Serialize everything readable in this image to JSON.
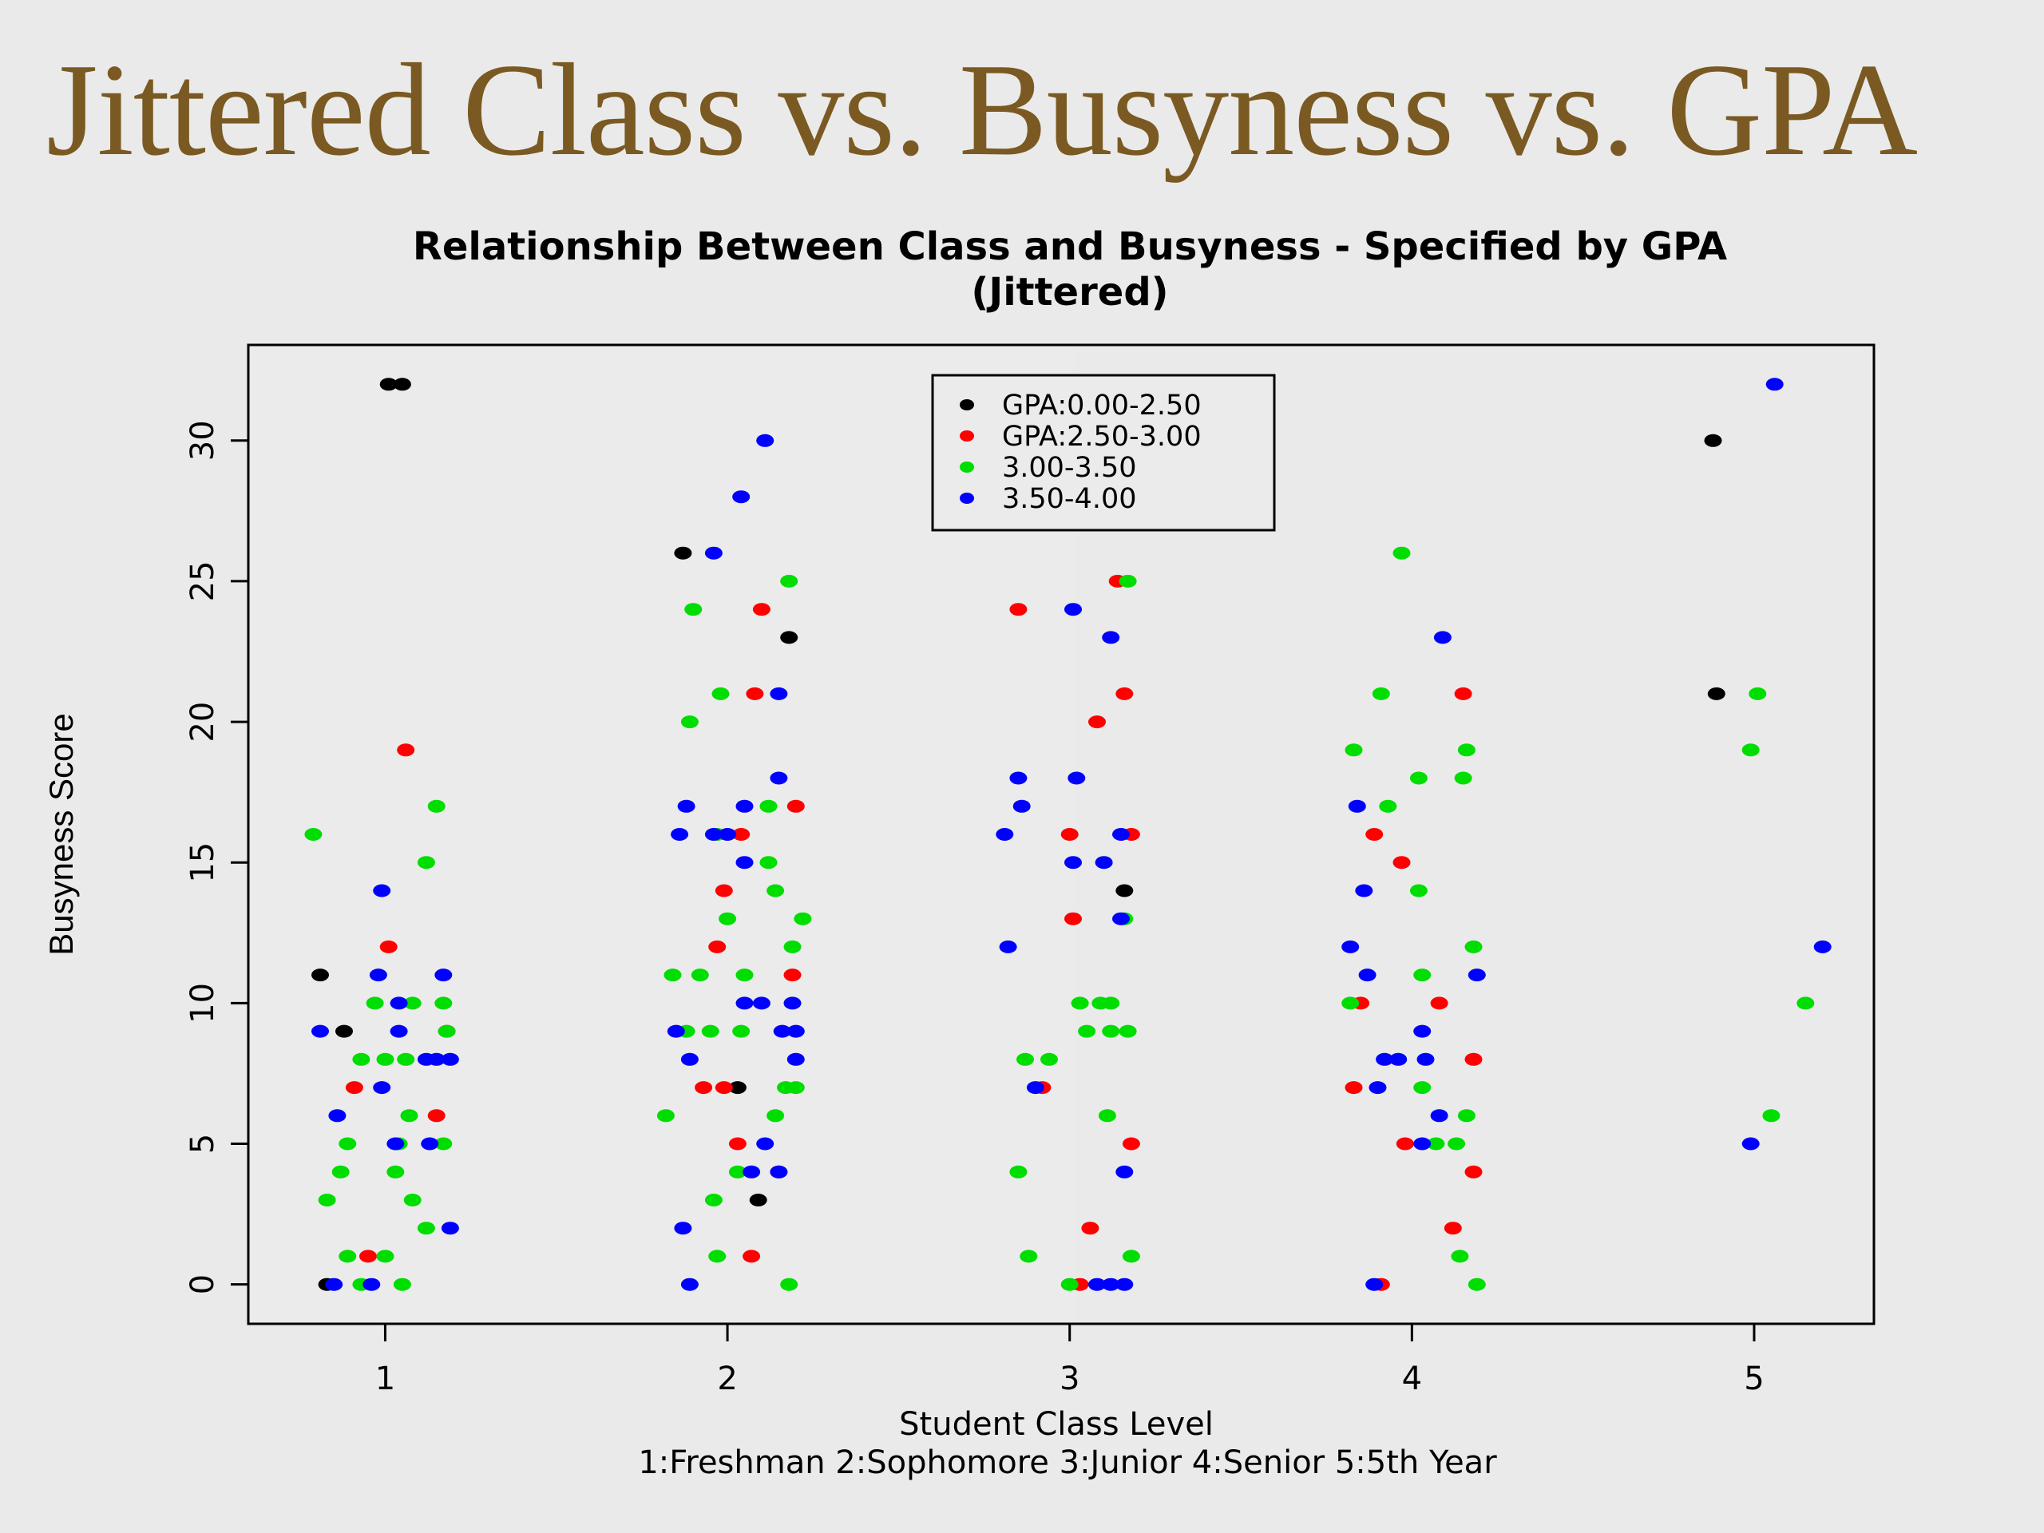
{
  "slide": {
    "title": "Jittered Class vs. Busyness vs. GPA",
    "title_color": "#7a5a22"
  },
  "chart_data": {
    "type": "scatter",
    "title": [
      "Relationship Between Class and Busyness - Specified by GPA",
      "(Jittered)"
    ],
    "xlabel": [
      "Student Class Level",
      "1:Freshman 2:Sophomore 3:Junior 4:Senior 5:5th Year"
    ],
    "ylabel": "Busyness Score",
    "xlim": [
      0.6,
      5.35
    ],
    "ylim": [
      -1.4,
      33.4
    ],
    "x_ticks": [
      1,
      2,
      3,
      4,
      5
    ],
    "y_ticks": [
      0,
      5,
      10,
      15,
      20,
      25,
      30
    ],
    "grid": false,
    "legend_position": "top-center",
    "series": [
      {
        "name": "GPA:0.00-2.50",
        "color": "#000000",
        "points": [
          [
            1.01,
            32
          ],
          [
            1.05,
            32
          ],
          [
            0.81,
            11
          ],
          [
            0.88,
            9
          ],
          [
            0.83,
            0
          ],
          [
            1.87,
            26
          ],
          [
            2.18,
            23
          ],
          [
            2.03,
            7
          ],
          [
            2.09,
            3
          ],
          [
            3.16,
            14
          ],
          [
            4.88,
            30
          ],
          [
            4.89,
            21
          ]
        ]
      },
      {
        "name": "GPA:2.50-3.00",
        "color": "#ff0000",
        "points": [
          [
            1.06,
            19
          ],
          [
            1.01,
            12
          ],
          [
            0.91,
            7
          ],
          [
            0.95,
            1
          ],
          [
            1.15,
            6
          ],
          [
            1.18,
            9
          ],
          [
            2.1,
            24
          ],
          [
            2.08,
            21
          ],
          [
            2.2,
            17
          ],
          [
            2.04,
            16
          ],
          [
            1.99,
            14
          ],
          [
            1.97,
            12
          ],
          [
            2.19,
            11
          ],
          [
            1.93,
            7
          ],
          [
            1.99,
            7
          ],
          [
            2.03,
            5
          ],
          [
            2.15,
            4
          ],
          [
            2.07,
            1
          ],
          [
            2.85,
            24
          ],
          [
            3.14,
            25
          ],
          [
            3.16,
            21
          ],
          [
            3.08,
            20
          ],
          [
            3.0,
            16
          ],
          [
            3.18,
            16
          ],
          [
            3.01,
            13
          ],
          [
            2.92,
            7
          ],
          [
            3.18,
            5
          ],
          [
            3.06,
            2
          ],
          [
            3.03,
            0
          ],
          [
            4.15,
            21
          ],
          [
            3.89,
            16
          ],
          [
            3.97,
            15
          ],
          [
            3.85,
            10
          ],
          [
            4.08,
            10
          ],
          [
            3.83,
            7
          ],
          [
            4.18,
            8
          ],
          [
            3.98,
            5
          ],
          [
            4.18,
            4
          ],
          [
            4.12,
            2
          ],
          [
            3.91,
            0
          ]
        ]
      },
      {
        "name": "3.00-3.50",
        "color": "#00dd00",
        "points": [
          [
            0.79,
            16
          ],
          [
            1.15,
            17
          ],
          [
            1.12,
            15
          ],
          [
            0.97,
            10
          ],
          [
            1.08,
            10
          ],
          [
            1.17,
            10
          ],
          [
            0.93,
            8
          ],
          [
            1.0,
            8
          ],
          [
            1.06,
            8
          ],
          [
            1.07,
            6
          ],
          [
            1.18,
            9
          ],
          [
            1.17,
            5
          ],
          [
            1.03,
            4
          ],
          [
            1.08,
            3
          ],
          [
            0.83,
            3
          ],
          [
            0.87,
            4
          ],
          [
            0.89,
            1
          ],
          [
            1.0,
            1
          ],
          [
            1.05,
            0
          ],
          [
            0.93,
            0
          ],
          [
            1.12,
            2
          ],
          [
            0.89,
            5
          ],
          [
            1.04,
            5
          ],
          [
            2.18,
            25
          ],
          [
            1.9,
            24
          ],
          [
            1.98,
            21
          ],
          [
            1.89,
            20
          ],
          [
            2.12,
            17
          ],
          [
            1.97,
            16
          ],
          [
            2.12,
            15
          ],
          [
            2.14,
            14
          ],
          [
            2.22,
            13
          ],
          [
            2.0,
            13
          ],
          [
            2.19,
            12
          ],
          [
            1.84,
            11
          ],
          [
            1.92,
            11
          ],
          [
            2.05,
            11
          ],
          [
            1.88,
            9
          ],
          [
            1.95,
            9
          ],
          [
            2.04,
            9
          ],
          [
            2.17,
            7
          ],
          [
            2.2,
            7
          ],
          [
            2.14,
            6
          ],
          [
            1.82,
            6
          ],
          [
            2.03,
            4
          ],
          [
            1.96,
            3
          ],
          [
            1.97,
            1
          ],
          [
            2.18,
            0
          ],
          [
            3.17,
            25
          ],
          [
            3.16,
            13
          ],
          [
            3.03,
            10
          ],
          [
            3.09,
            10
          ],
          [
            3.12,
            10
          ],
          [
            3.05,
            9
          ],
          [
            3.12,
            9
          ],
          [
            3.17,
            9
          ],
          [
            2.87,
            8
          ],
          [
            2.94,
            8
          ],
          [
            3.11,
            6
          ],
          [
            2.85,
            4
          ],
          [
            2.88,
            1
          ],
          [
            3.18,
            1
          ],
          [
            3.0,
            0
          ],
          [
            3.97,
            26
          ],
          [
            3.91,
            21
          ],
          [
            3.83,
            19
          ],
          [
            3.93,
            17
          ],
          [
            4.02,
            18
          ],
          [
            4.15,
            18
          ],
          [
            4.16,
            19
          ],
          [
            4.02,
            14
          ],
          [
            4.18,
            12
          ],
          [
            4.03,
            11
          ],
          [
            3.82,
            10
          ],
          [
            4.03,
            7
          ],
          [
            4.16,
            6
          ],
          [
            4.07,
            5
          ],
          [
            4.13,
            5
          ],
          [
            4.14,
            1
          ],
          [
            4.19,
            0
          ],
          [
            5.01,
            21
          ],
          [
            4.99,
            19
          ],
          [
            5.15,
            10
          ],
          [
            5.05,
            6
          ]
        ]
      },
      {
        "name": "3.50-4.00",
        "color": "#0000ff",
        "points": [
          [
            0.99,
            14
          ],
          [
            0.98,
            11
          ],
          [
            1.17,
            11
          ],
          [
            0.81,
            9
          ],
          [
            1.04,
            10
          ],
          [
            1.04,
            9
          ],
          [
            0.99,
            7
          ],
          [
            1.12,
            8
          ],
          [
            1.15,
            8
          ],
          [
            1.19,
            8
          ],
          [
            0.86,
            6
          ],
          [
            1.03,
            5
          ],
          [
            1.13,
            5
          ],
          [
            1.19,
            2
          ],
          [
            0.85,
            0
          ],
          [
            0.96,
            0
          ],
          [
            2.11,
            30
          ],
          [
            2.04,
            28
          ],
          [
            1.96,
            26
          ],
          [
            2.15,
            21
          ],
          [
            2.15,
            18
          ],
          [
            1.88,
            17
          ],
          [
            2.05,
            17
          ],
          [
            1.86,
            16
          ],
          [
            1.96,
            16
          ],
          [
            2.0,
            16
          ],
          [
            2.05,
            15
          ],
          [
            2.05,
            10
          ],
          [
            2.1,
            10
          ],
          [
            2.19,
            10
          ],
          [
            1.85,
            9
          ],
          [
            2.16,
            9
          ],
          [
            2.2,
            9
          ],
          [
            1.89,
            8
          ],
          [
            2.2,
            8
          ],
          [
            2.07,
            4
          ],
          [
            2.11,
            5
          ],
          [
            2.15,
            4
          ],
          [
            1.87,
            2
          ],
          [
            1.89,
            0
          ],
          [
            3.01,
            24
          ],
          [
            3.12,
            23
          ],
          [
            2.85,
            18
          ],
          [
            3.02,
            18
          ],
          [
            2.86,
            17
          ],
          [
            2.81,
            16
          ],
          [
            3.15,
            16
          ],
          [
            3.01,
            15
          ],
          [
            3.1,
            15
          ],
          [
            3.15,
            13
          ],
          [
            2.82,
            12
          ],
          [
            2.9,
            7
          ],
          [
            3.16,
            4
          ],
          [
            3.08,
            0
          ],
          [
            3.12,
            0
          ],
          [
            3.16,
            0
          ],
          [
            4.09,
            23
          ],
          [
            3.84,
            17
          ],
          [
            3.86,
            14
          ],
          [
            3.82,
            12
          ],
          [
            3.87,
            11
          ],
          [
            4.19,
            11
          ],
          [
            4.03,
            9
          ],
          [
            3.92,
            8
          ],
          [
            3.96,
            8
          ],
          [
            4.04,
            8
          ],
          [
            3.9,
            7
          ],
          [
            4.08,
            6
          ],
          [
            4.03,
            5
          ],
          [
            3.89,
            0
          ],
          [
            5.06,
            32
          ],
          [
            5.2,
            12
          ],
          [
            4.99,
            5
          ]
        ]
      }
    ]
  }
}
